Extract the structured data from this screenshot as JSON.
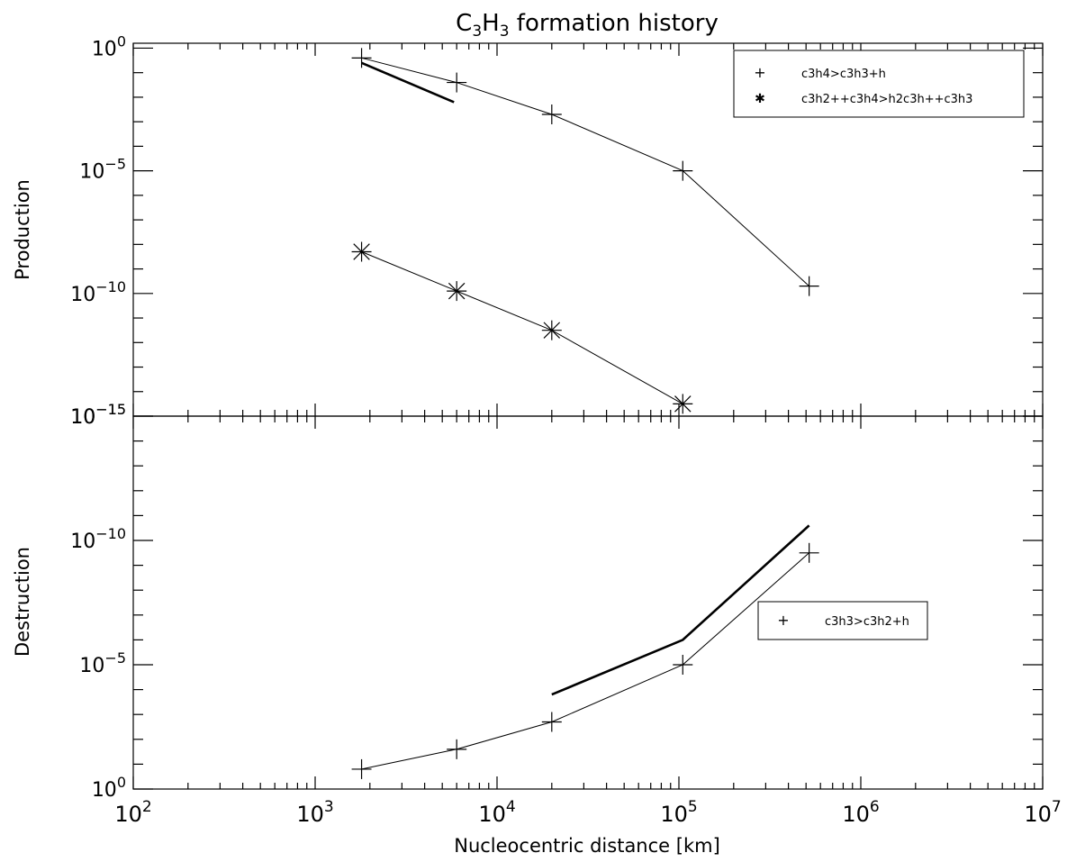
{
  "chart_data": {
    "type": "line",
    "title": {
      "main": "C",
      "sub1": "3",
      "mid": "H",
      "sub2": "3",
      "rest": " formation history"
    },
    "xlabel": "Nucleocentric distance [km]",
    "x_scale": "log",
    "xlim": [
      100,
      10000000
    ],
    "x_ticks": [
      {
        "base": "10",
        "exp": "2"
      },
      {
        "base": "10",
        "exp": "3"
      },
      {
        "base": "10",
        "exp": "4"
      },
      {
        "base": "10",
        "exp": "5"
      },
      {
        "base": "10",
        "exp": "6"
      },
      {
        "base": "10",
        "exp": "7"
      }
    ],
    "panels": [
      {
        "id": "production",
        "ylabel": "Production",
        "y_scale": "log",
        "y_range_exponents": [
          0.2,
          -15.0
        ],
        "y_ticks": [
          {
            "base": "10",
            "exp": "0",
            "value_exp": 0
          },
          {
            "base": "10",
            "exp": "−5",
            "value_exp": -5
          },
          {
            "base": "10",
            "exp": "−10",
            "value_exp": -10
          },
          {
            "base": "10",
            "exp": "−15",
            "value_exp": -15
          }
        ],
        "series": [
          {
            "name": "c3h4>c3h3+h",
            "marker": "plus",
            "x": [
              1800,
              6000,
              20000,
              105000,
              520000
            ],
            "y_exponents": [
              -0.4,
              -1.4,
              -2.7,
              -5.0,
              -9.7
            ]
          },
          {
            "name": "c3h2++c3h4>h2c3h++c3h3",
            "marker": "asterisk",
            "x": [
              1800,
              6000,
              20000,
              105000
            ],
            "y_exponents": [
              -8.3,
              -9.9,
              -11.5,
              -14.5
            ]
          }
        ],
        "model_lines": [
          {
            "x": [
              1800,
              5800
            ],
            "y_exponents": [
              -0.6,
              -2.2
            ]
          }
        ],
        "legend": {
          "placement": "top-right",
          "entries": [
            {
              "symbol": "+",
              "label": "c3h4>c3h3+h"
            },
            {
              "symbol": "✱",
              "label": "c3h2++c3h4>h2c3h++c3h3"
            }
          ]
        }
      },
      {
        "id": "destruction",
        "ylabel": "Destruction",
        "y_scale": "log",
        "y_range_exponents": [
          -15.0,
          0.0
        ],
        "y_ticks": [
          {
            "base": "10",
            "exp": "−15",
            "value_exp": -15
          },
          {
            "base": "10",
            "exp": "−10",
            "value_exp": -10
          },
          {
            "base": "10",
            "exp": "−5",
            "value_exp": -5
          },
          {
            "base": "10",
            "exp": "0",
            "value_exp": 0
          }
        ],
        "series": [
          {
            "name": "c3h3>c3h2+h",
            "marker": "plus",
            "x": [
              1800,
              6000,
              20000,
              105000,
              520000
            ],
            "y_exponents": [
              -0.8,
              -1.6,
              -2.7,
              -5.0,
              -9.5
            ]
          }
        ],
        "model_lines": [
          {
            "x": [
              20000,
              105000,
              520000
            ],
            "y_exponents": [
              -3.8,
              -6.0,
              -10.6
            ]
          }
        ],
        "legend": {
          "placement": "center-right",
          "entries": [
            {
              "symbol": "+",
              "label": "c3h3>c3h2+h"
            }
          ]
        }
      }
    ]
  }
}
